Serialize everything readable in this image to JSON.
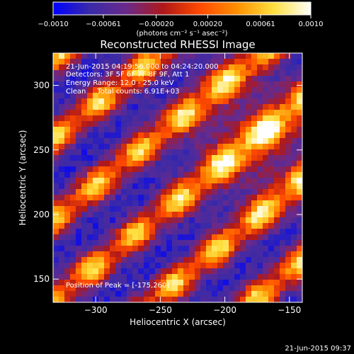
{
  "colorbar": {
    "tick_labels": [
      "−0.0010",
      "−0.00061",
      "−0.00020",
      "0.00020",
      "0.00061",
      "0.0010"
    ],
    "tick_values": [
      -0.001,
      -0.00061,
      -0.0002,
      0.0002,
      0.00061,
      0.001
    ],
    "units_label": "(photons cm⁻² s⁻¹ asec⁻²)",
    "range": [
      -0.001,
      0.001
    ]
  },
  "chart_data": {
    "type": "heatmap",
    "title": "Reconstructed RHESSI Image",
    "xlabel": "Heliocentric X (arcsec)",
    "ylabel": "Heliocentric Y (arcsec)",
    "xlim": [
      -333,
      -140
    ],
    "ylim": [
      132,
      325
    ],
    "x_ticks": [
      -300,
      -250,
      -200,
      -150
    ],
    "x_tick_labels": [
      "−300",
      "−250",
      "−200",
      "−150"
    ],
    "y_ticks": [
      150,
      200,
      250,
      300
    ],
    "y_tick_labels": [
      "150",
      "200",
      "250",
      "300"
    ],
    "colormap": [
      "#0000ff",
      "#3a2aa8",
      "#6a2a8a",
      "#b01818",
      "#ff4a00",
      "#ff9000",
      "#ffe040",
      "#ffffff"
    ],
    "pattern": "diagonal stripes (lower-left to upper-right)",
    "peak": {
      "x": -175,
      "y": 260
    },
    "annotations": [
      "21-Jun-2015 04:19:56.000 to 04:24:20.000",
      "Detectors: 3F 5F 6F 7F 8F 9F, Att 1",
      "Energy Range: 12.0 - 25.0 keV",
      "Clean     Total counts: 6.91E+03"
    ],
    "peak_label": "Position of Peak = [-175,260]"
  },
  "footer": {
    "timestamp": "21-Jun-2015 09:37"
  }
}
